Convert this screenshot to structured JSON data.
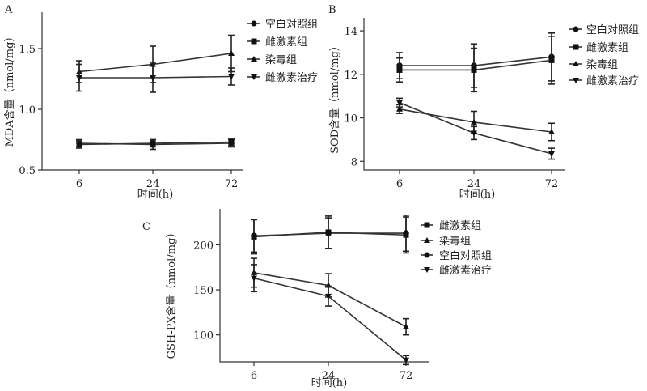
{
  "chart_data": [
    {
      "panel_label": "A",
      "type": "line",
      "categories": [
        "6",
        "24",
        "72"
      ],
      "ylabel": "MDA含量（nmol/mg）",
      "xlabel": "时间(h)",
      "ylim": [
        0.5,
        1.8
      ],
      "yticks": [
        0.5,
        1.0,
        1.5
      ],
      "ytick_labels": [
        "0.5",
        "1.0",
        "1.5"
      ],
      "legend_position": "top-right",
      "series": [
        {
          "name": "空白对照组",
          "marker": "circle",
          "values": [
            0.72,
            0.71,
            0.72
          ],
          "errors": [
            0.03,
            0.04,
            0.03
          ]
        },
        {
          "name": "雌激素组",
          "marker": "square",
          "values": [
            0.71,
            0.72,
            0.73
          ],
          "errors": [
            0.03,
            0.03,
            0.03
          ]
        },
        {
          "name": "染毒组",
          "marker": "triangle-up",
          "values": [
            1.31,
            1.37,
            1.46
          ],
          "errors": [
            0.09,
            0.15,
            0.15
          ]
        },
        {
          "name": "雌激素治疗",
          "marker": "triangle-down",
          "values": [
            1.26,
            1.26,
            1.27
          ],
          "errors": [
            0.11,
            0.12,
            0.07
          ]
        }
      ]
    },
    {
      "panel_label": "B",
      "type": "line",
      "categories": [
        "6",
        "24",
        "72"
      ],
      "ylabel": "SOD含量（nmol/mg）",
      "xlabel": "时间(h)",
      "ylim": [
        7.6,
        14.6
      ],
      "yticks": [
        8,
        10,
        12,
        14
      ],
      "ytick_labels": [
        "8",
        "10",
        "12",
        "14"
      ],
      "legend_position": "top-right",
      "series": [
        {
          "name": "空白对照组",
          "marker": "circle",
          "values": [
            12.4,
            12.4,
            12.8
          ],
          "errors": [
            0.6,
            1.0,
            1.1
          ]
        },
        {
          "name": "雌激素组",
          "marker": "square",
          "values": [
            12.2,
            12.2,
            12.65
          ],
          "errors": [
            0.55,
            1.0,
            1.1
          ]
        },
        {
          "name": "染毒组",
          "marker": "triangle-up",
          "values": [
            10.4,
            9.8,
            9.35
          ],
          "errors": [
            0.2,
            0.5,
            0.4
          ]
        },
        {
          "name": "雌激素治疗",
          "marker": "triangle-down",
          "values": [
            10.7,
            9.3,
            8.35
          ],
          "errors": [
            0.2,
            0.3,
            0.25
          ]
        }
      ]
    },
    {
      "panel_label": "C",
      "type": "line",
      "categories": [
        "6",
        "24",
        "72"
      ],
      "ylabel": "GSH-PX含量（nmol/mg）",
      "xlabel": "时间(h)",
      "ylim": [
        70,
        240
      ],
      "yticks": [
        100,
        150,
        200
      ],
      "ytick_labels": [
        "100",
        "150",
        "200"
      ],
      "legend_position": "top-right",
      "series": [
        {
          "name": "雌激素组",
          "marker": "square",
          "values": [
            209,
            214,
            211
          ],
          "errors": [
            19,
            18,
            20
          ]
        },
        {
          "name": "染毒组",
          "marker": "triangle-up",
          "values": [
            169,
            155,
            109
          ],
          "errors": [
            16,
            13,
            9
          ]
        },
        {
          "name": "空白对照组",
          "marker": "circle",
          "values": [
            210,
            213,
            213
          ],
          "errors": [
            18,
            17,
            20
          ]
        },
        {
          "name": "雌激素治疗",
          "marker": "triangle-down",
          "values": [
            163,
            143,
            72
          ],
          "errors": [
            15,
            11,
            5
          ]
        }
      ]
    }
  ]
}
